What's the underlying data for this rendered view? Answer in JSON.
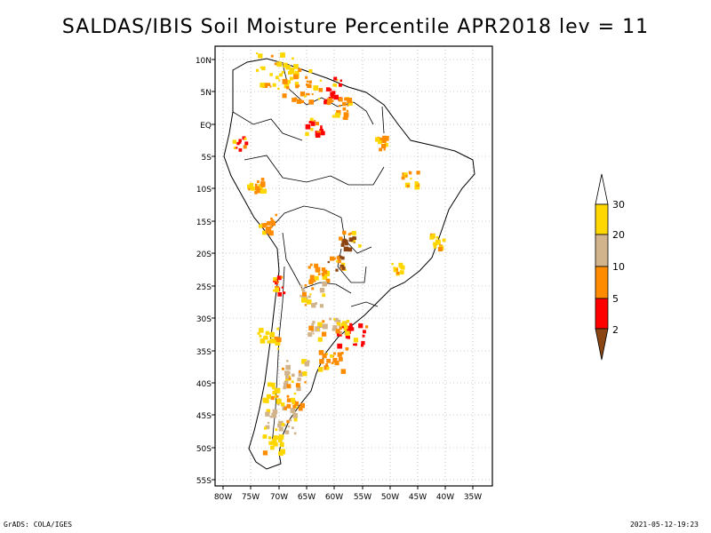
{
  "title": "SALDAS/IBIS Soil Moisture Percentile APR2018 lev = 11",
  "map": {
    "lat_labels": [
      "10N",
      "5N",
      "EQ",
      "5S",
      "10S",
      "15S",
      "20S",
      "25S",
      "30S",
      "35S",
      "40S",
      "45S",
      "50S",
      "55S"
    ],
    "lon_labels": [
      "80W",
      "75W",
      "70W",
      "65W",
      "60W",
      "55W",
      "50W",
      "45W",
      "40W",
      "35W"
    ],
    "grid": "dotted"
  },
  "legend": {
    "labels": [
      "2",
      "5",
      "10",
      "20",
      "30"
    ],
    "colors": {
      "below_2": "#8b4513",
      "2_5": "#ff0000",
      "5_10": "#ff8c00",
      "10_20": "#d2b48c",
      "20_30": "#ffd700",
      "above_30": "#ffffff"
    }
  },
  "footer": {
    "left": "GrADS: COLA/IGES",
    "right": "2021-05-12-19:23"
  }
}
